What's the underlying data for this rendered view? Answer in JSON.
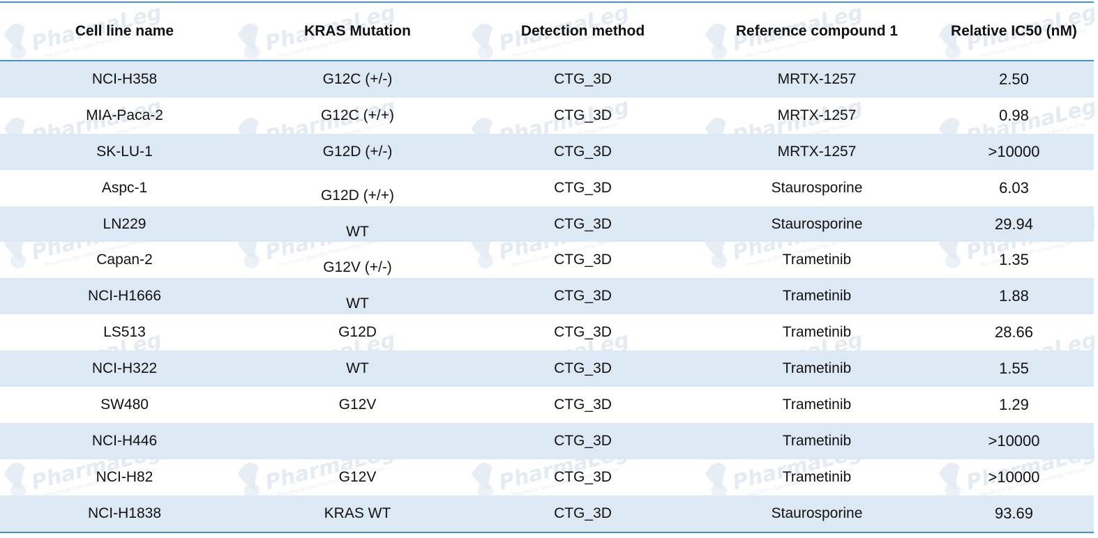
{
  "table": {
    "headers": [
      "Cell line name",
      "KRAS Mutation",
      "Detection method",
      "Reference compound  1",
      "Relative IC50 (nM)"
    ],
    "rows": [
      [
        "NCI-H358",
        "G12C (+/-)",
        "CTG_3D",
        "MRTX-1257",
        "2.50"
      ],
      [
        "MIA-Paca-2",
        "G12C (+/+)",
        "CTG_3D",
        "MRTX-1257",
        "0.98"
      ],
      [
        "SK-LU-1",
        "G12D (+/-)",
        "CTG_3D",
        "MRTX-1257",
        ">10000"
      ],
      [
        "Aspc-1",
        "G12D (+/+)",
        "CTG_3D",
        "Staurosporine",
        "6.03"
      ],
      [
        "LN229",
        "WT",
        "CTG_3D",
        "Staurosporine",
        "29.94"
      ],
      [
        "Capan-2",
        "G12V (+/-)",
        "CTG_3D",
        "Trametinib",
        "1.35"
      ],
      [
        "NCI-H1666",
        "WT",
        "CTG_3D",
        "Trametinib",
        "1.88"
      ],
      [
        "LS513",
        "G12D",
        "CTG_3D",
        "Trametinib",
        "28.66"
      ],
      [
        "NCI-H322",
        "WT",
        "CTG_3D",
        "Trametinib",
        "1.55"
      ],
      [
        "SW480",
        "G12V",
        "CTG_3D",
        "Trametinib",
        "1.29"
      ],
      [
        "NCI-H446",
        "",
        "CTG_3D",
        "Trametinib",
        ">10000"
      ],
      [
        "NCI-H82",
        "G12V",
        "CTG_3D",
        "Trametinib",
        ">10000"
      ],
      [
        "NCI-H1838",
        "KRAS WT",
        "CTG_3D",
        "Staurosporine",
        "93.69"
      ]
    ]
  },
  "watermark": {
    "brand": "PharmaLegacy",
    "tagline": "Pre-clinical Specialty Pharmacology Services"
  },
  "colors": {
    "rule": "#4f8fc0",
    "shaded_row": "#dde8f5",
    "watermark": "#9fb8d6"
  }
}
